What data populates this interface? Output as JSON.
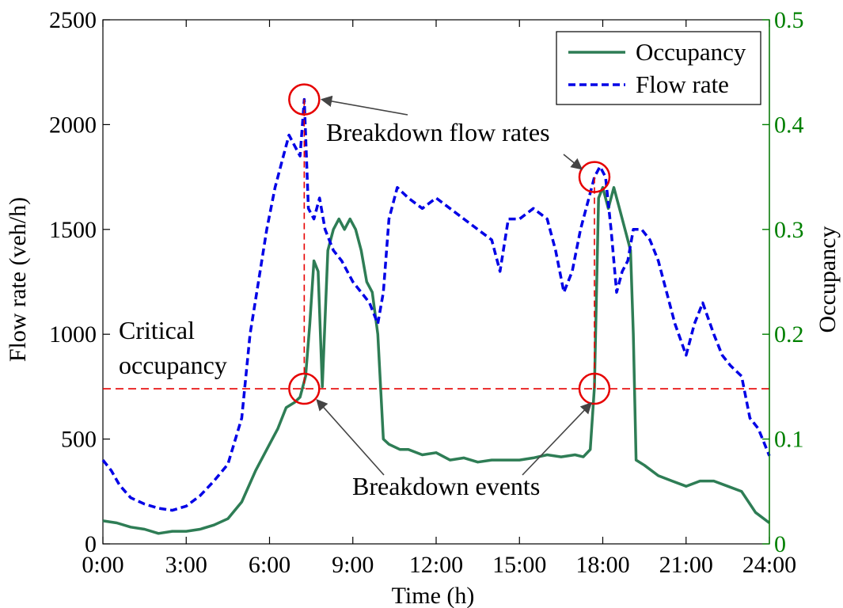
{
  "chart_data": {
    "type": "line",
    "xlabel": "Time (h)",
    "ylabel": "Flow rate (veh/h)",
    "y2label": "Occupancy",
    "xlim": [
      0,
      24
    ],
    "ylim": [
      0,
      2500
    ],
    "y2lim": [
      0,
      0.5
    ],
    "x_ticks": [
      "0:00",
      "3:00",
      "6:00",
      "9:00",
      "12:00",
      "15:00",
      "18:00",
      "21:00",
      "24:00"
    ],
    "y_ticks": [
      "0",
      "500",
      "1000",
      "1500",
      "2000",
      "2500"
    ],
    "y2_ticks": [
      "0",
      "0.1",
      "0.2",
      "0.3",
      "0.4",
      "0.5"
    ],
    "y2_color": "#008000",
    "legend_position": "top-right",
    "grid": false,
    "series": [
      {
        "name": "Occupancy",
        "axis": "right",
        "color": "#2e7d55",
        "style": "solid",
        "x": [
          0,
          0.5,
          1,
          1.5,
          2,
          2.5,
          3,
          3.5,
          4,
          4.5,
          5,
          5.5,
          6,
          6.3,
          6.6,
          6.9,
          7.1,
          7.3,
          7.45,
          7.6,
          7.75,
          7.9,
          8.1,
          8.3,
          8.5,
          8.7,
          8.9,
          9.1,
          9.3,
          9.5,
          9.7,
          9.9,
          10.0,
          10.1,
          10.3,
          10.7,
          11,
          11.5,
          12,
          12.5,
          13,
          13.5,
          14,
          14.5,
          15,
          15.5,
          16,
          16.5,
          17,
          17.3,
          17.55,
          17.7,
          17.85,
          18.0,
          18.2,
          18.4,
          18.6,
          18.8,
          19.0,
          19.1,
          19.2,
          19.5,
          20,
          20.5,
          21,
          21.5,
          22,
          22.5,
          23,
          23.5,
          24
        ],
        "values": [
          0.022,
          0.02,
          0.016,
          0.014,
          0.01,
          0.012,
          0.012,
          0.014,
          0.018,
          0.024,
          0.04,
          0.07,
          0.095,
          0.11,
          0.13,
          0.135,
          0.14,
          0.16,
          0.21,
          0.27,
          0.26,
          0.15,
          0.28,
          0.3,
          0.31,
          0.3,
          0.31,
          0.3,
          0.28,
          0.25,
          0.24,
          0.2,
          0.15,
          0.1,
          0.095,
          0.09,
          0.09,
          0.085,
          0.087,
          0.08,
          0.082,
          0.078,
          0.08,
          0.08,
          0.08,
          0.082,
          0.085,
          0.083,
          0.085,
          0.083,
          0.09,
          0.15,
          0.33,
          0.34,
          0.32,
          0.34,
          0.32,
          0.3,
          0.28,
          0.2,
          0.08,
          0.075,
          0.065,
          0.06,
          0.055,
          0.06,
          0.06,
          0.055,
          0.05,
          0.03,
          0.02
        ]
      },
      {
        "name": "Flow rate",
        "axis": "left",
        "color": "#0000e6",
        "style": "dashed",
        "x": [
          0,
          0.3,
          0.6,
          1,
          1.5,
          2,
          2.5,
          3,
          3.5,
          4,
          4.5,
          5,
          5.3,
          5.6,
          5.9,
          6.2,
          6.5,
          6.7,
          6.9,
          7.1,
          7.25,
          7.4,
          7.6,
          7.8,
          8.0,
          8.3,
          8.6,
          9.0,
          9.3,
          9.6,
          9.9,
          10.1,
          10.3,
          10.6,
          11,
          11.5,
          12,
          12.5,
          13,
          13.5,
          14,
          14.3,
          14.6,
          15,
          15.5,
          16,
          16.3,
          16.6,
          16.9,
          17.2,
          17.5,
          17.7,
          17.9,
          18.1,
          18.3,
          18.5,
          18.7,
          18.9,
          19.1,
          19.4,
          19.7,
          20,
          20.3,
          20.6,
          21,
          21.3,
          21.6,
          22,
          22.3,
          22.6,
          23,
          23.3,
          23.6,
          24
        ],
        "values": [
          400,
          350,
          280,
          220,
          190,
          170,
          160,
          180,
          230,
          300,
          380,
          600,
          1000,
          1250,
          1500,
          1700,
          1850,
          1950,
          1900,
          1850,
          2120,
          1600,
          1550,
          1650,
          1500,
          1400,
          1350,
          1250,
          1200,
          1150,
          1050,
          1200,
          1550,
          1700,
          1650,
          1600,
          1650,
          1600,
          1550,
          1500,
          1450,
          1300,
          1550,
          1550,
          1600,
          1550,
          1400,
          1200,
          1300,
          1500,
          1650,
          1750,
          1800,
          1750,
          1500,
          1200,
          1300,
          1350,
          1500,
          1500,
          1450,
          1350,
          1200,
          1050,
          900,
          1050,
          1150,
          1000,
          900,
          850,
          800,
          600,
          550,
          420
        ]
      }
    ],
    "critical_occupancy": 0.148,
    "breakdown_times": [
      7.25,
      17.7
    ],
    "annotations": {
      "critical_line1": "Critical",
      "critical_line2": "occupancy",
      "breakdown_flow": "Breakdown flow rates",
      "breakdown_events": "Breakdown events"
    },
    "annotation_colors": {
      "markers": "#e60000",
      "critical_line": "#e60000",
      "arrows": "#444444"
    }
  }
}
